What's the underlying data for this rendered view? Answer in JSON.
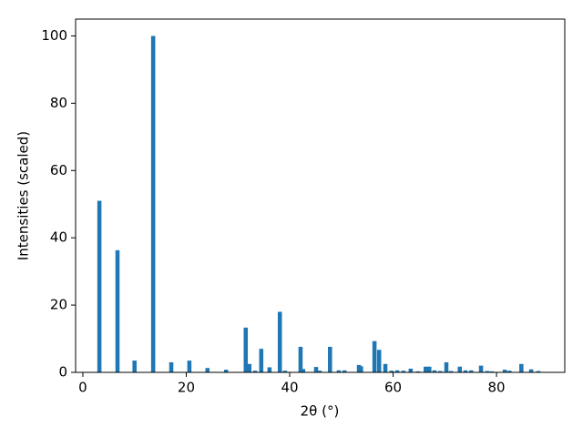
{
  "chart_data": {
    "type": "bar",
    "xlabel": "2θ (°)",
    "ylabel": "Intensities (scaled)",
    "color": "#1f77b4",
    "x": [
      3.2,
      6.7,
      10.0,
      13.6,
      17.1,
      20.6,
      24.1,
      27.7,
      31.5,
      32.2,
      33.3,
      34.5,
      36.1,
      38.1,
      39.1,
      42.1,
      42.6,
      45.1,
      45.8,
      47.8,
      49.5,
      50.6,
      53.4,
      53.8,
      56.4,
      57.3,
      58.5,
      59.7,
      60.8,
      62.0,
      63.4,
      64.8,
      66.3,
      67.0,
      68.0,
      69.1,
      70.3,
      71.2,
      72.9,
      74.0,
      75.1,
      77.0,
      78.2,
      79.1,
      81.6,
      82.5,
      84.8,
      86.7,
      88.1
    ],
    "values": [
      51,
      36.3,
      3.5,
      100,
      3,
      3.5,
      1.3,
      0.8,
      13.3,
      2.5,
      0.5,
      7,
      1.5,
      18,
      0.5,
      7.6,
      1,
      1.6,
      0.5,
      7.6,
      0.6,
      0.6,
      2.2,
      1.8,
      9.3,
      6.7,
      2.5,
      0.5,
      0.6,
      0.5,
      1.1,
      0.3,
      1.7,
      1.7,
      0.6,
      0.4,
      3,
      0.4,
      1.7,
      0.6,
      0.6,
      2,
      0.4,
      0.3,
      0.8,
      0.5,
      2.5,
      0.9,
      0.4
    ],
    "xlim": [
      -1.4,
      93.2
    ],
    "ylim": [
      0,
      105
    ],
    "xticks": [
      0,
      20,
      40,
      60,
      80
    ],
    "yticks": [
      0,
      20,
      40,
      60,
      80,
      100
    ]
  }
}
